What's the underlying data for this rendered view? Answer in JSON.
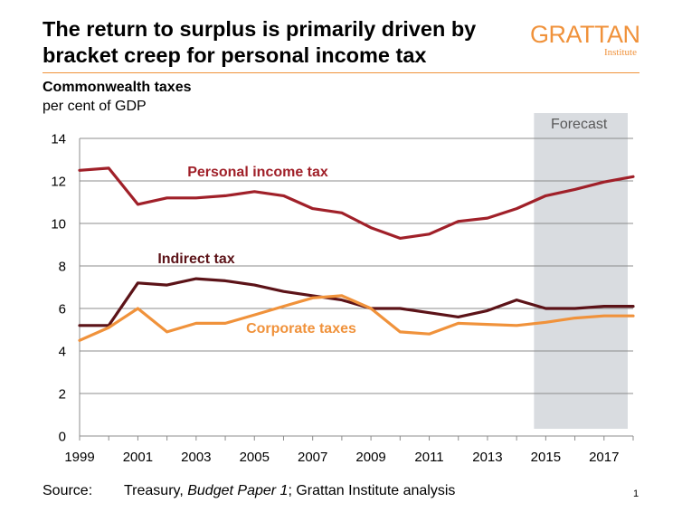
{
  "title": "The return to surplus is primarily driven by bracket creep for personal income tax",
  "logo": {
    "main": "GRATTAN",
    "sub": "Institute"
  },
  "subtitle": "Commonwealth taxes",
  "units": "per cent of GDP",
  "source": {
    "label": "Source:",
    "text_a": "Treasury, ",
    "text_italic": "Budget Paper 1",
    "text_b": "; Grattan Institute analysis"
  },
  "page_number": "1",
  "chart_data": {
    "type": "line",
    "x": [
      1999,
      2000,
      2001,
      2002,
      2003,
      2004,
      2005,
      2006,
      2007,
      2008,
      2009,
      2010,
      2011,
      2012,
      2013,
      2014,
      2015,
      2016,
      2017,
      2018
    ],
    "xlim": [
      1999,
      2018
    ],
    "ylim": [
      0,
      14
    ],
    "yticks": [
      0,
      2,
      4,
      6,
      8,
      10,
      12,
      14
    ],
    "xticks": [
      1999,
      2001,
      2003,
      2005,
      2007,
      2009,
      2011,
      2013,
      2015,
      2017
    ],
    "grid": true,
    "forecast": {
      "label": "Forecast",
      "from": 2015,
      "to": 2018,
      "color": "#D9DCE0"
    },
    "series": [
      {
        "name": "Personal income tax",
        "color": "#A02029",
        "values": [
          12.5,
          12.6,
          10.9,
          11.2,
          11.2,
          11.3,
          11.5,
          11.3,
          10.7,
          10.5,
          9.8,
          9.3,
          9.5,
          10.1,
          10.25,
          10.7,
          11.3,
          11.6,
          11.95,
          12.2
        ]
      },
      {
        "name": "Indirect tax",
        "color": "#5C1318",
        "values": [
          5.2,
          5.2,
          7.2,
          7.1,
          7.4,
          7.3,
          7.1,
          6.8,
          6.6,
          6.4,
          6.0,
          6.0,
          5.8,
          5.6,
          5.9,
          6.4,
          6.0,
          6.0,
          6.1,
          6.1
        ]
      },
      {
        "name": "Corporate taxes",
        "color": "#F0923B",
        "values": [
          4.5,
          5.1,
          6.0,
          4.9,
          5.3,
          5.3,
          5.7,
          6.1,
          6.5,
          6.6,
          6.0,
          4.9,
          4.8,
          5.3,
          5.25,
          5.2,
          5.35,
          5.55,
          5.65,
          5.65
        ]
      }
    ]
  }
}
